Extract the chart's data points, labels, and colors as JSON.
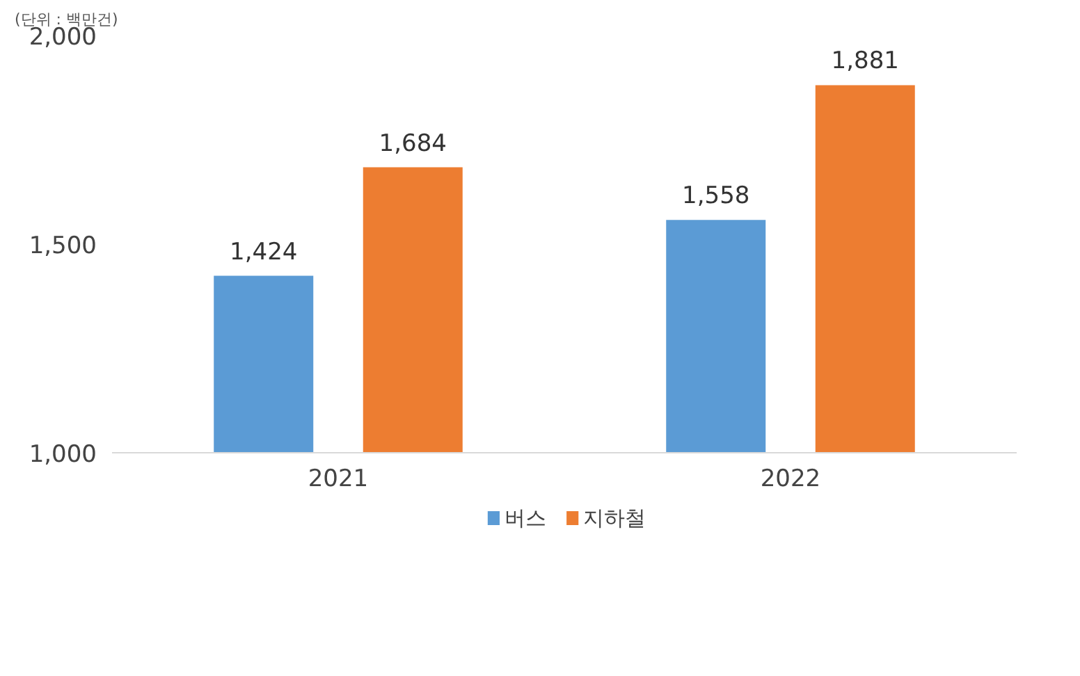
{
  "chart_data": {
    "type": "bar",
    "categories": [
      "2021",
      "2022"
    ],
    "series": [
      {
        "name": "버스",
        "color": "#5b9bd5",
        "values": [
          1424,
          1558
        ],
        "value_labels": [
          "1,424",
          "1,558"
        ]
      },
      {
        "name": "지하철",
        "color": "#ed7d31",
        "values": [
          1684,
          1881
        ],
        "value_labels": [
          "1,684",
          "1,881"
        ]
      }
    ],
    "ylim": [
      1000,
      2000
    ],
    "yticks": [
      {
        "value": 1000,
        "label": "1,000"
      },
      {
        "value": 1500,
        "label": "1,500"
      },
      {
        "value": 2000,
        "label": "2,000"
      }
    ],
    "legend": "bottom",
    "annotations": [
      "(단위 : 백만건)"
    ]
  }
}
